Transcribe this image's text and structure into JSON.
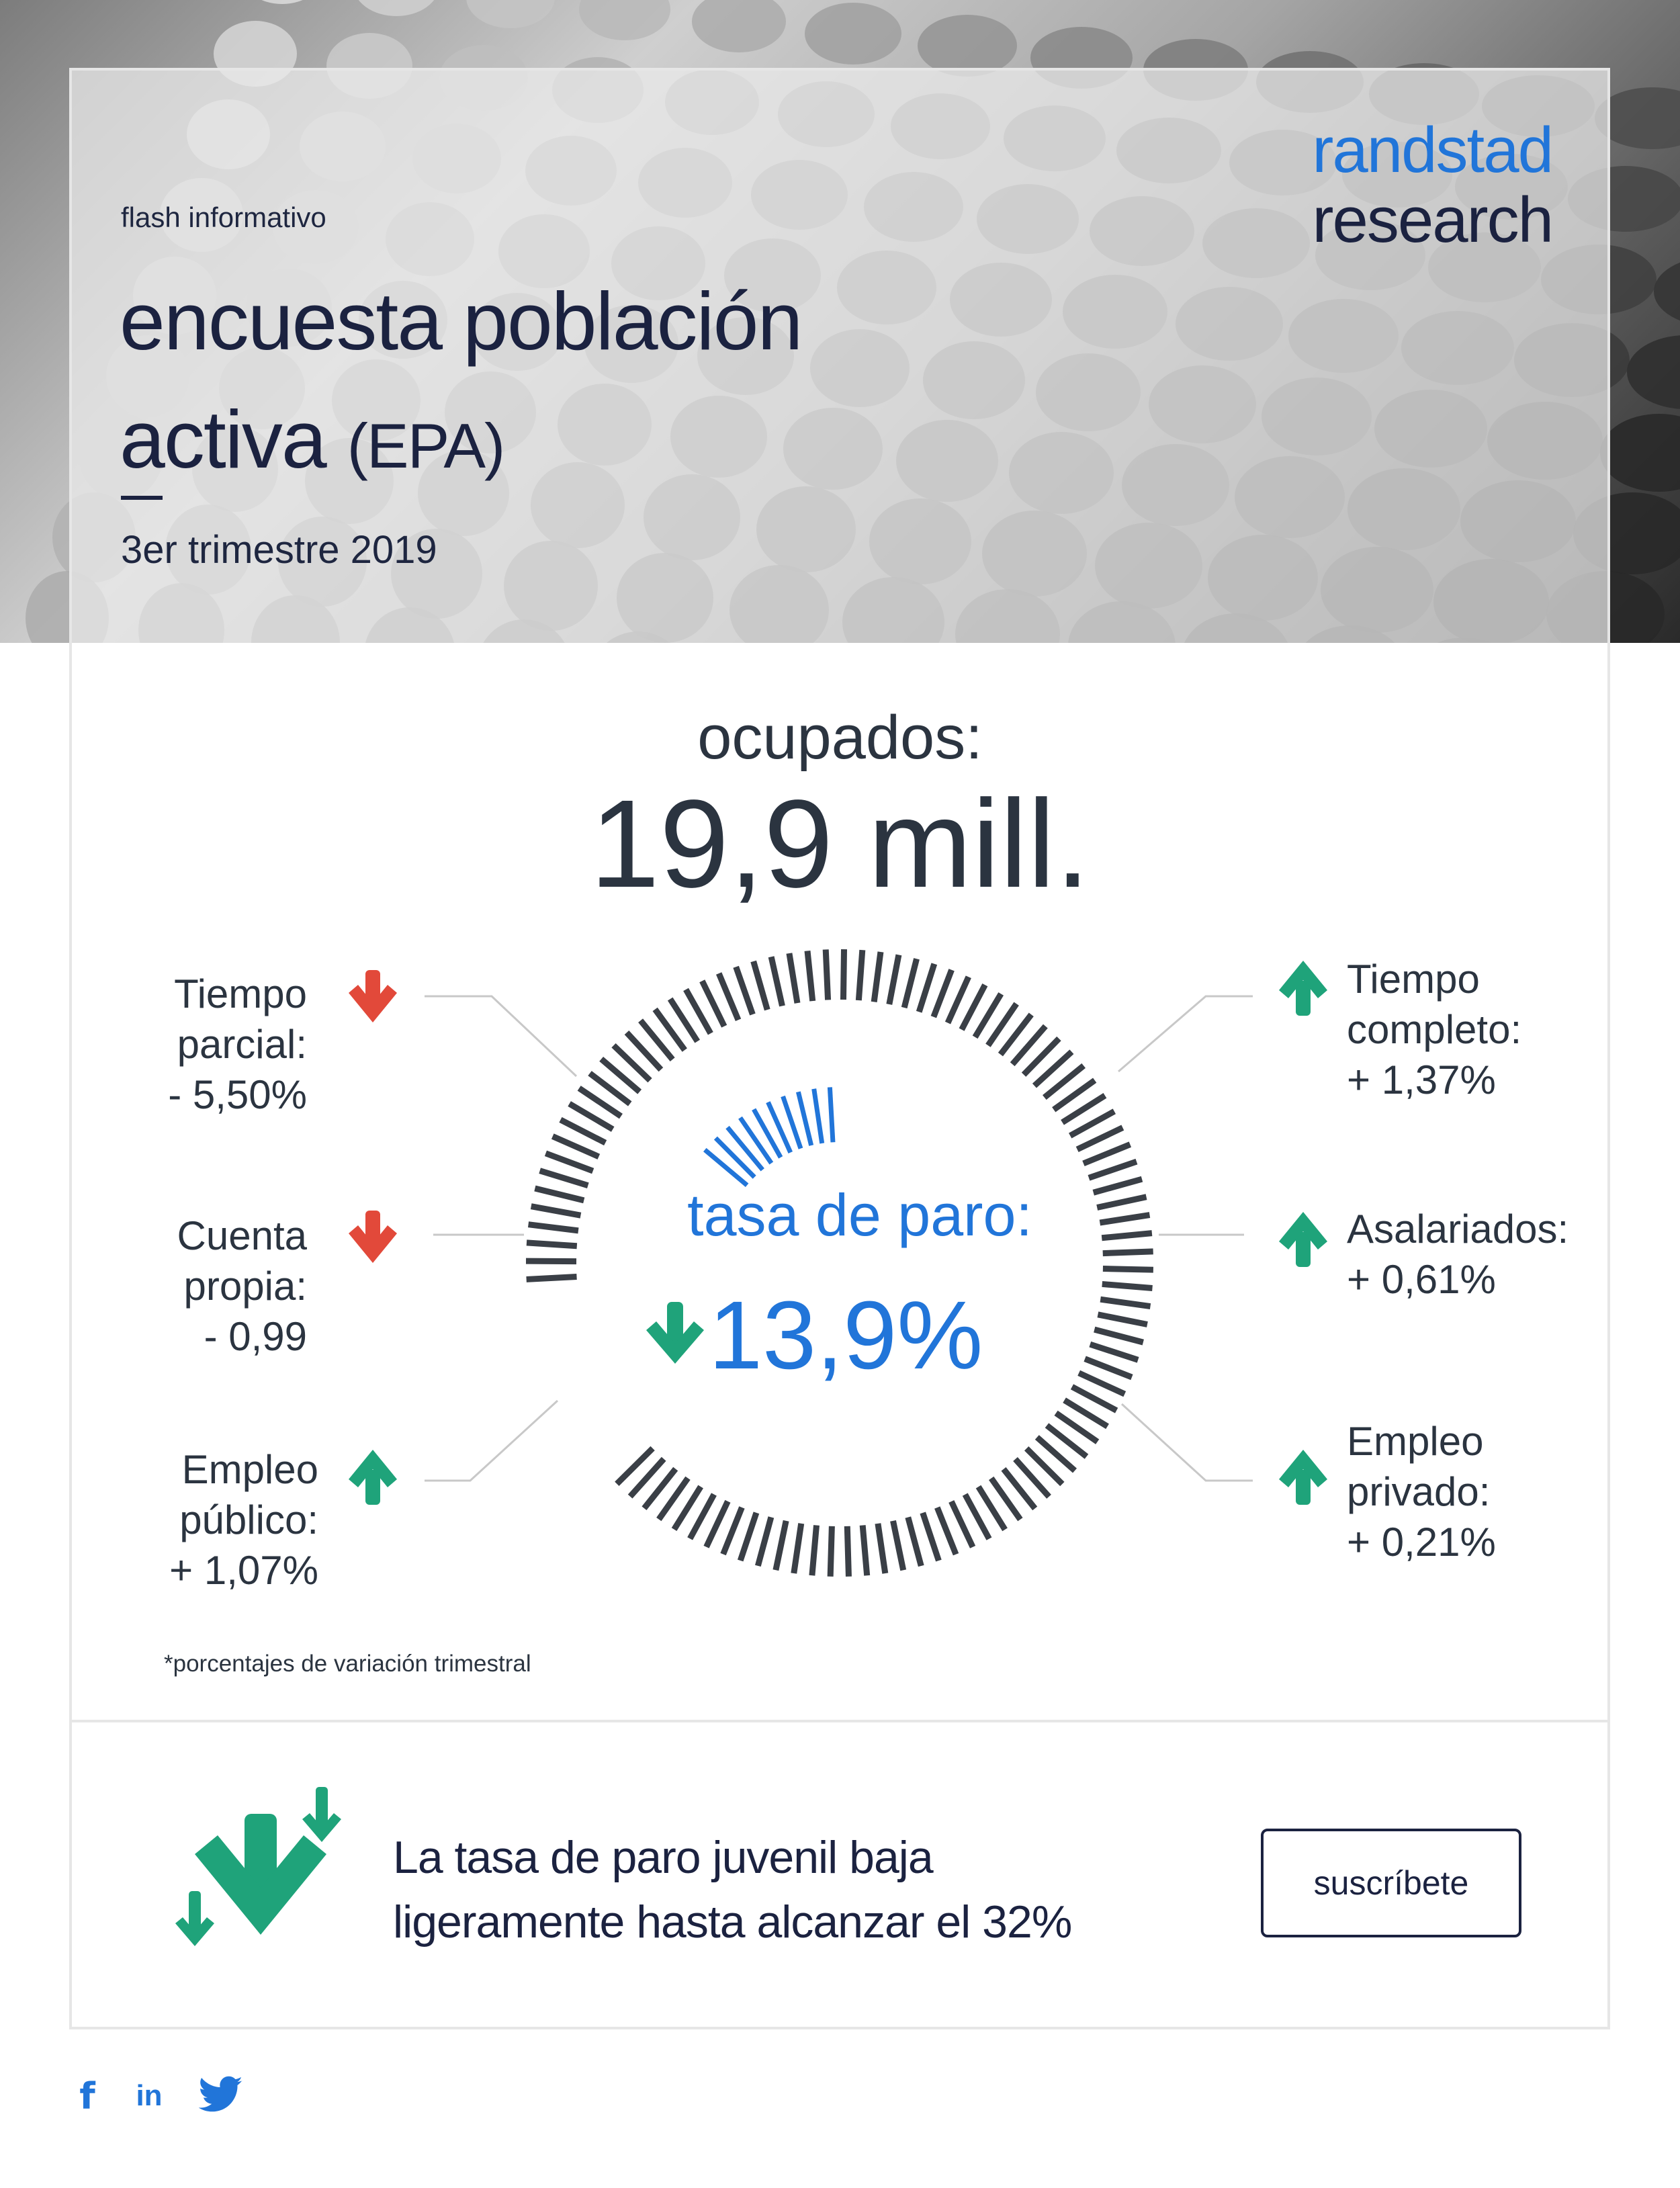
{
  "header": {
    "kicker": "flash informativo",
    "title_line1": "encuesta población",
    "title_line2a": "activa",
    "title_line2b": "(EPA)",
    "period": "3er trimestre 2019",
    "brand_line1": "randstad",
    "brand_line2": "research"
  },
  "headline": {
    "label": "ocupados:",
    "value": "19,9 mill."
  },
  "left_stats": [
    {
      "line1": "Tiempo",
      "line2": "parcial:",
      "value": "- 5,50%",
      "direction": "down"
    },
    {
      "line1": "Cuenta",
      "line2": "propia:",
      "value": "- 0,99",
      "direction": "down"
    },
    {
      "line1": "Empleo",
      "line2": "público:",
      "value": "+ 1,07%",
      "direction": "up"
    }
  ],
  "right_stats": [
    {
      "line1": "Tiempo",
      "line2": "completo:",
      "value": "+ 1,37%",
      "direction": "up"
    },
    {
      "line1": "Asalariados:",
      "line2": "",
      "value": "+ 0,61%",
      "direction": "up"
    },
    {
      "line1": "Empleo",
      "line2": "privado:",
      "value": "+ 0,21%",
      "direction": "up"
    }
  ],
  "unemployment": {
    "label": "tasa de paro:",
    "value": "13,9%",
    "direction": "down",
    "gauge_fraction": 0.139
  },
  "note": "*porcentajes de variación trimestral",
  "footer_banner": {
    "line1": "La tasa de paro juvenil baja",
    "line2": "ligeramente hasta alcanzar el 32%",
    "button_label": "suscríbete"
  },
  "social": {
    "facebook": "f",
    "linkedin": "in",
    "twitter_icon": "twitter-bird-icon"
  },
  "colors": {
    "blue": "#2175d9",
    "navy": "#1b2240",
    "green": "#1fa37a",
    "red": "#e2493a",
    "dark": "#2b3440"
  }
}
